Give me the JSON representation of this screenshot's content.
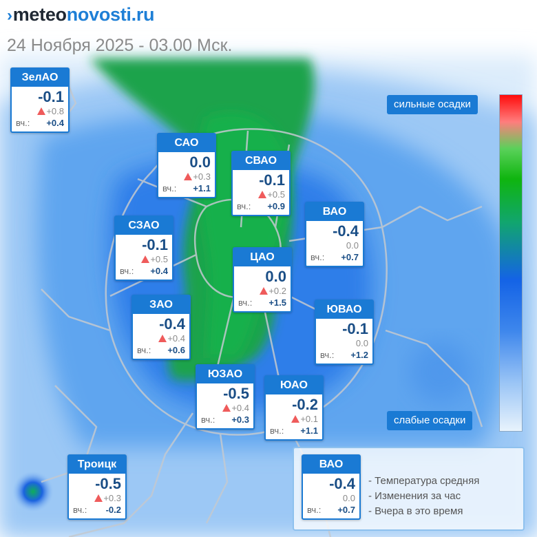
{
  "brand": {
    "part1": "meteo",
    "part2": "novosti.ru"
  },
  "datetime": "24 Ноября 2025 - 03.00 Мск.",
  "scale": {
    "high_label": "сильные осадки",
    "low_label": "слабые осадки"
  },
  "districts": [
    {
      "id": "zelao",
      "name": "ЗелАО",
      "temp": "-0.1",
      "change": "+0.8",
      "change_up": true,
      "yesterday_label": "вч.:",
      "yesterday": "+0.4"
    },
    {
      "id": "sao",
      "name": "САО",
      "temp": "0.0",
      "change": "+0.3",
      "change_up": true,
      "yesterday_label": "вч.:",
      "yesterday": "+1.1"
    },
    {
      "id": "svao",
      "name": "СВАО",
      "temp": "-0.1",
      "change": "+0.5",
      "change_up": true,
      "yesterday_label": "вч.:",
      "yesterday": "+0.9"
    },
    {
      "id": "vao",
      "name": "ВАО",
      "temp": "-0.4",
      "change": "0.0",
      "change_up": false,
      "yesterday_label": "вч.:",
      "yesterday": "+0.7"
    },
    {
      "id": "szao",
      "name": "СЗАО",
      "temp": "-0.1",
      "change": "+0.5",
      "change_up": true,
      "yesterday_label": "вч.:",
      "yesterday": "+0.4"
    },
    {
      "id": "cao",
      "name": "ЦАО",
      "temp": "0.0",
      "change": "+0.2",
      "change_up": true,
      "yesterday_label": "вч.:",
      "yesterday": "+1.5"
    },
    {
      "id": "zao",
      "name": "ЗАО",
      "temp": "-0.4",
      "change": "+0.4",
      "change_up": true,
      "yesterday_label": "вч.:",
      "yesterday": "+0.6"
    },
    {
      "id": "uvao",
      "name": "ЮВАО",
      "temp": "-0.1",
      "change": "0.0",
      "change_up": false,
      "yesterday_label": "вч.:",
      "yesterday": "+1.2"
    },
    {
      "id": "uzao",
      "name": "ЮЗАО",
      "temp": "-0.5",
      "change": "+0.4",
      "change_up": true,
      "yesterday_label": "вч.:",
      "yesterday": "+0.3"
    },
    {
      "id": "uao",
      "name": "ЮАО",
      "temp": "-0.2",
      "change": "+0.1",
      "change_up": true,
      "yesterday_label": "вч.:",
      "yesterday": "+1.1"
    },
    {
      "id": "troick",
      "name": "Троицк",
      "temp": "-0.5",
      "change": "+0.3",
      "change_up": true,
      "yesterday_label": "вч.:",
      "yesterday": "-0.2"
    }
  ],
  "legend": {
    "sample": {
      "name": "ВАО",
      "temp": "-0.4",
      "change": "0.0",
      "change_up": false,
      "yesterday_label": "вч.:",
      "yesterday": "+0.7"
    },
    "items": [
      "- Температура средняя",
      "- Изменения за час",
      "- Вчера в это время"
    ]
  },
  "colors": {
    "card_accent": "#1a7ad4",
    "temp_text": "#1a4e86",
    "rise_marker": "#ef5b5b"
  }
}
